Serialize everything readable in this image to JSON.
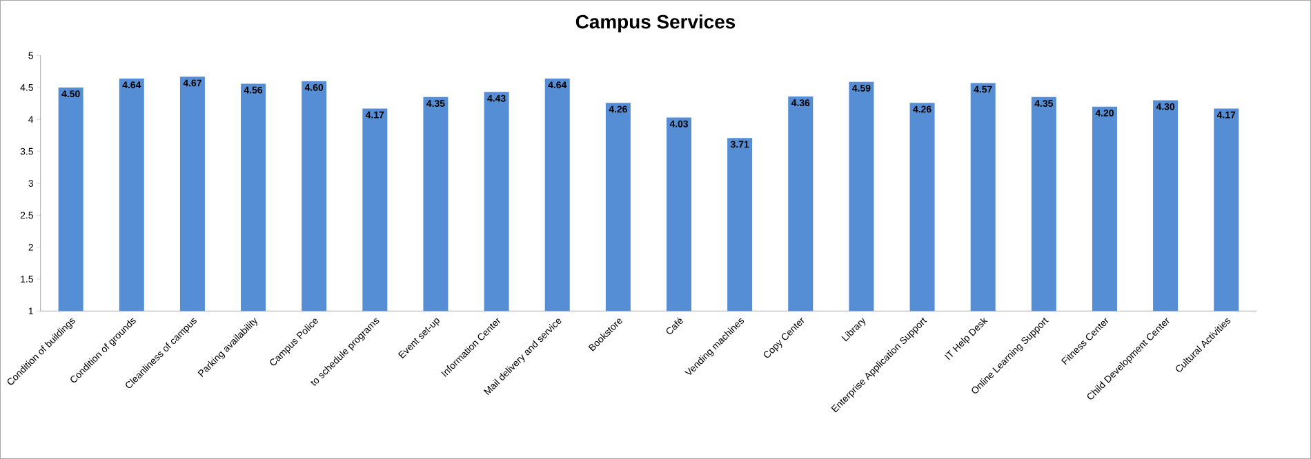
{
  "chart_data": {
    "type": "bar",
    "title": "Campus Services",
    "categories": [
      "Condition of buildings",
      "Condition of grounds",
      "Cleanliness of campus",
      "Parking availability",
      "Campus Police",
      "to schedule programs",
      "Event set-up",
      "Information Center",
      "Mail delivery and service",
      "Bookstore",
      "Café",
      "Vending machines",
      "Copy Center",
      "Library",
      "Enterprise Application Support",
      "IT Help Desk",
      "Online Learning Support",
      "Fitness Center",
      "Child Development Center",
      "Cultural Activities"
    ],
    "values": [
      4.5,
      4.64,
      4.67,
      4.56,
      4.6,
      4.17,
      4.35,
      4.43,
      4.64,
      4.26,
      4.03,
      3.71,
      4.36,
      4.59,
      4.26,
      4.57,
      4.35,
      4.2,
      4.3,
      4.17
    ],
    "value_labels": [
      "4.50",
      "4.64",
      "4.67",
      "4.56",
      "4.60",
      "4.17",
      "4.35",
      "4.43",
      "4.64",
      "4.26",
      "4.03",
      "3.71",
      "4.36",
      "4.59",
      "4.26",
      "4.57",
      "4.35",
      "4.20",
      "4.30",
      "4.17"
    ],
    "color": "#558ed5",
    "ylim": [
      1,
      5
    ],
    "yticks": [
      1,
      1.5,
      2,
      2.5,
      3,
      3.5,
      4,
      4.5,
      5
    ]
  }
}
